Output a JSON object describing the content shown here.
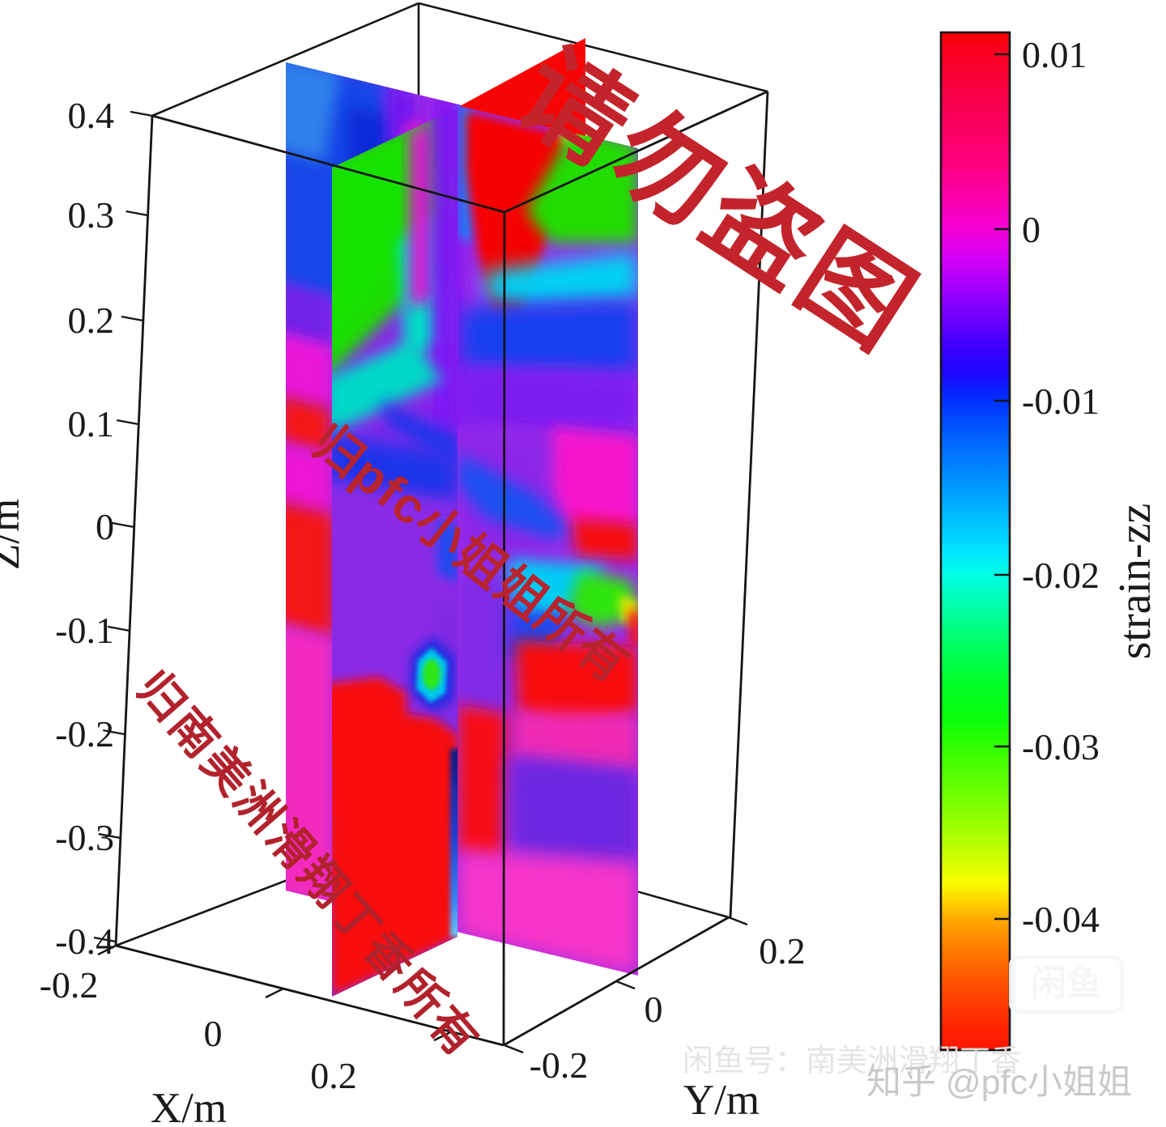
{
  "chart_data": {
    "type": "heatmap",
    "subtype": "3d-volume-slice-plot",
    "variable": "strain-zz",
    "axes": {
      "x": {
        "label": "X/m",
        "range": [
          -0.2,
          0.2
        ],
        "ticks": [
          "-0.2",
          "0",
          "0.2"
        ]
      },
      "y": {
        "label": "Y/m",
        "range": [
          -0.2,
          0.2
        ],
        "ticks": [
          "-0.2",
          "0",
          "0.2"
        ]
      },
      "z": {
        "label": "Z/m",
        "range": [
          -0.4,
          0.4
        ],
        "ticks": [
          "0.4",
          "0.3",
          "0.2",
          "0.1",
          "0",
          "-0.1",
          "-0.2",
          "-0.3",
          "-0.4"
        ]
      }
    },
    "colorbar": {
      "label": "strain-zz",
      "ticks": [
        0.01,
        0,
        -0.01,
        -0.02,
        -0.03,
        -0.04
      ],
      "estimated_range": [
        -0.048,
        0.011
      ],
      "colormap": "hsv (red-magenta-blue-cyan-green-yellow-red)"
    },
    "slices": [
      {
        "axis": "x",
        "position": 0,
        "notable_features": "green top band, blue mid band, cyan-green hexagonal blob near z=-0.15, large red zone below z=-0.17, thin blue vertical line near intersection at bottom"
      },
      {
        "axis": "y",
        "position": 0,
        "notable_features": "blue upper-left, red vertical column near x=0 at top, green upper-right, cyan-green horizontal streak with red tip near z=-0.08, magenta/purple middle, pink-magenta bottom right, red patches on left edge"
      }
    ],
    "grid": "3d box on",
    "legend_position": "colorbar right"
  },
  "axes": {
    "z": {
      "label": "Z/m",
      "ticks": [
        "0.4",
        "0.3",
        "0.2",
        "0.1",
        "0",
        "-0.1",
        "-0.2",
        "-0.3",
        "-0.4"
      ]
    },
    "x": {
      "label": "X/m",
      "ticks": [
        "-0.2",
        "0",
        "0.2"
      ]
    },
    "y": {
      "label": "Y/m",
      "ticks": [
        "-0.2",
        "0",
        "0.2"
      ]
    }
  },
  "colorbar": {
    "label": "strain-zz",
    "tick_labels": [
      "0.01",
      "0",
      "-0.01",
      "-0.02",
      "-0.03",
      "-0.04"
    ],
    "gradient": [
      {
        "o": 0.0,
        "c": "#fa0005"
      },
      {
        "o": 0.02,
        "c": "#fa001e"
      },
      {
        "o": 0.05,
        "c": "#f8003c"
      },
      {
        "o": 0.09,
        "c": "#f9005e"
      },
      {
        "o": 0.13,
        "c": "#ff0080"
      },
      {
        "o": 0.165,
        "c": "#fb00b0"
      },
      {
        "o": 0.193,
        "c": "#f300d6"
      },
      {
        "o": 0.22,
        "c": "#d800f2"
      },
      {
        "o": 0.25,
        "c": "#a400ff"
      },
      {
        "o": 0.28,
        "c": "#7000ff"
      },
      {
        "o": 0.31,
        "c": "#3c00ff"
      },
      {
        "o": 0.335,
        "c": "#1c06ff"
      },
      {
        "o": 0.362,
        "c": "#0032ff"
      },
      {
        "o": 0.4,
        "c": "#0064ff"
      },
      {
        "o": 0.44,
        "c": "#0092ff"
      },
      {
        "o": 0.48,
        "c": "#00c0ff"
      },
      {
        "o": 0.51,
        "c": "#00e4ff"
      },
      {
        "o": 0.533,
        "c": "#00ffe6"
      },
      {
        "o": 0.565,
        "c": "#00ffa8"
      },
      {
        "o": 0.6,
        "c": "#00ff64"
      },
      {
        "o": 0.64,
        "c": "#00ff28"
      },
      {
        "o": 0.675,
        "c": "#0aff0a"
      },
      {
        "o": 0.702,
        "c": "#32ff00"
      },
      {
        "o": 0.74,
        "c": "#64ff00"
      },
      {
        "o": 0.78,
        "c": "#9cff00"
      },
      {
        "o": 0.81,
        "c": "#ccff00"
      },
      {
        "o": 0.835,
        "c": "#f8ff00"
      },
      {
        "o": 0.852,
        "c": "#ffd800"
      },
      {
        "o": 0.871,
        "c": "#ffaa00"
      },
      {
        "o": 0.9,
        "c": "#ff7d00"
      },
      {
        "o": 0.94,
        "c": "#ff4b00"
      },
      {
        "o": 0.97,
        "c": "#ff2a00"
      },
      {
        "o": 1.0,
        "c": "#ff1400"
      }
    ]
  },
  "watermarks": {
    "big": "请勿盗图",
    "owner_mid": "归pfc小姐姐所有",
    "owner_left": "归南美洲滑翔丁香所有",
    "shop_line": "闲鱼号：南美洲滑翔丁香",
    "zhihu_line": "知乎 @pfc小姐姐",
    "logo": "闲鱼"
  },
  "colors": {
    "watermark_red": "#c3242b",
    "axis_black": "#151515",
    "background": "#ffffff"
  }
}
